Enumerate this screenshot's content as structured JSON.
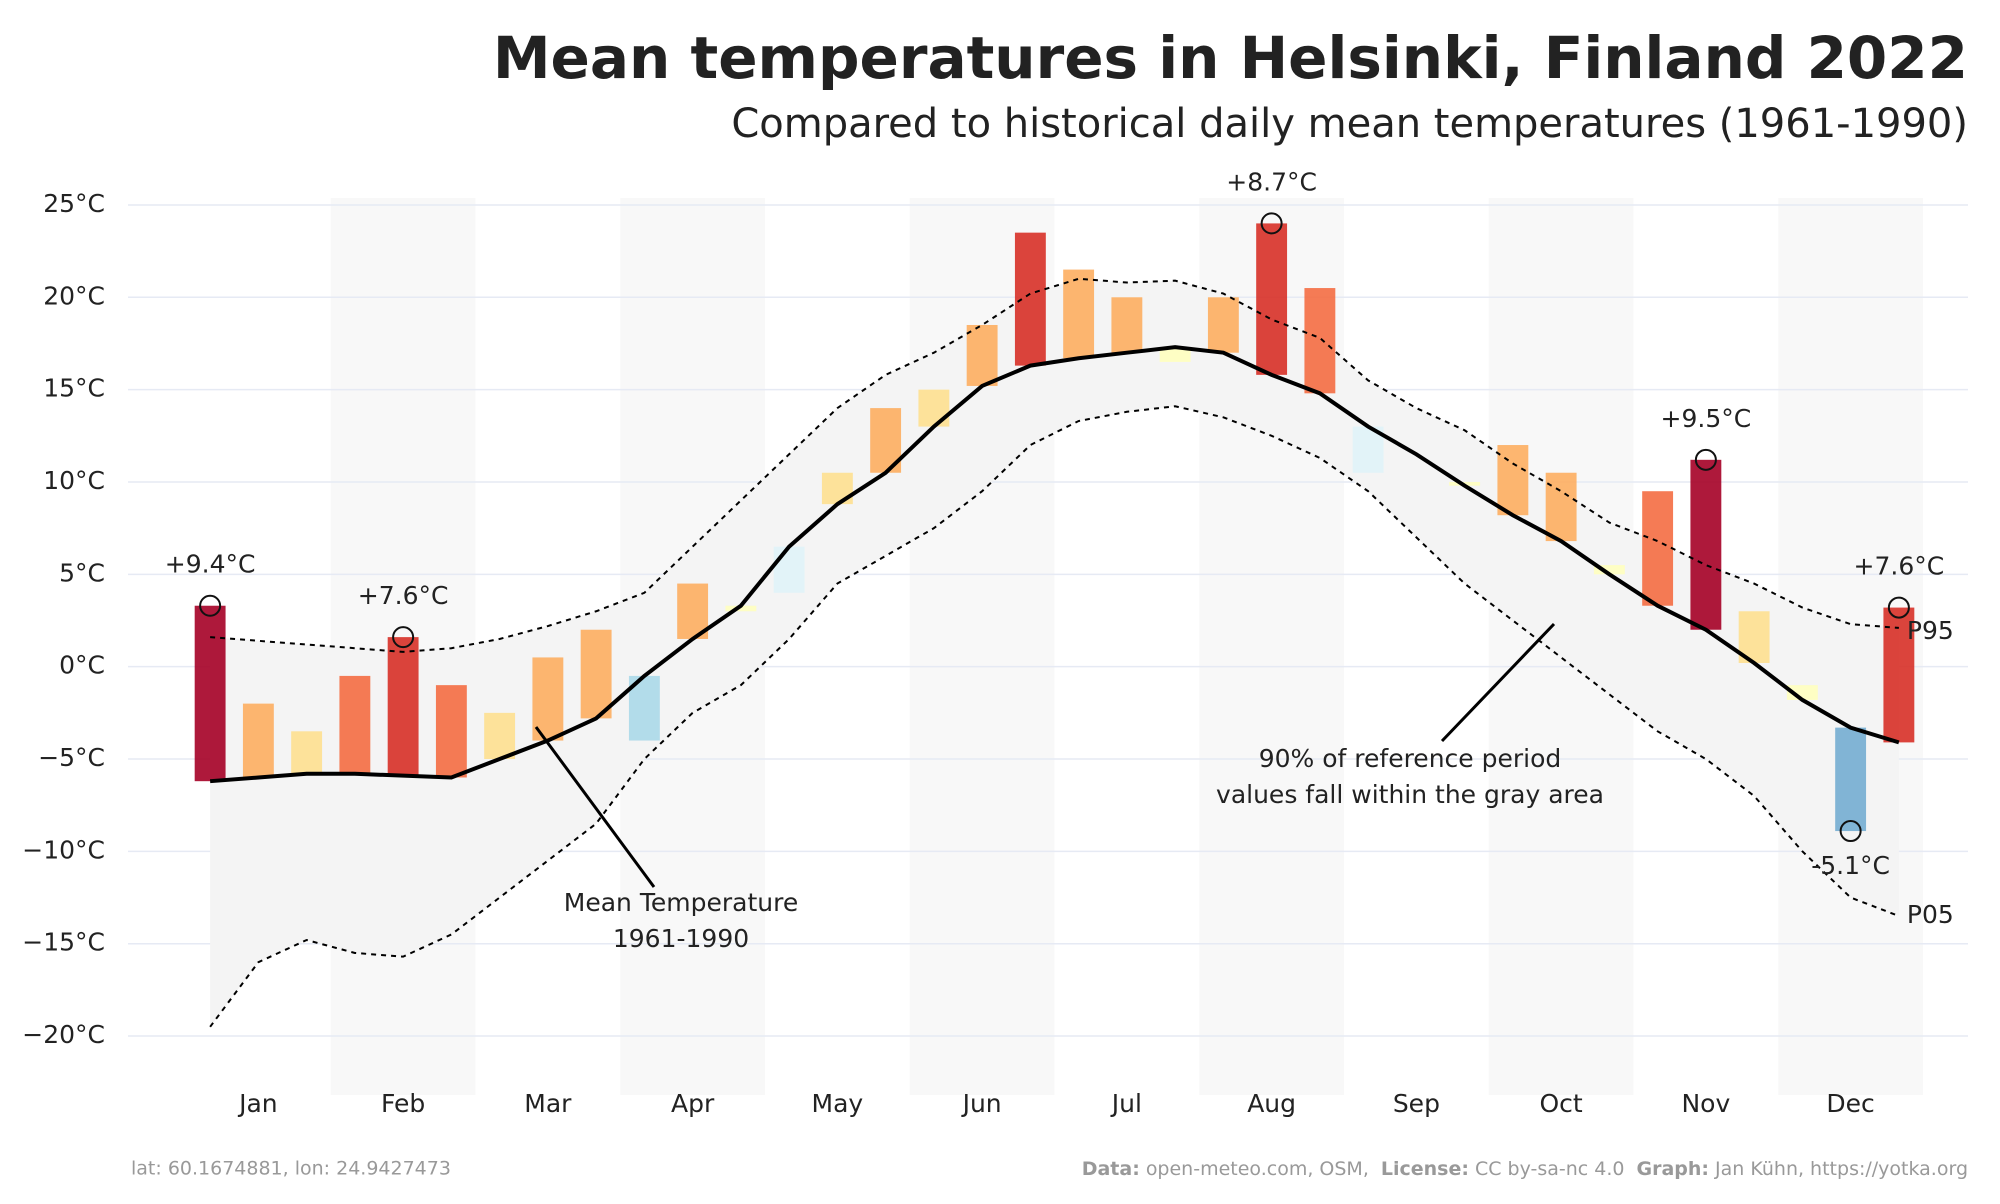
{
  "chart_data": {
    "type": "climate-band",
    "title": "Mean temperatures in Helsinki, Finland 2022",
    "subtitle": "Compared to historical daily mean temperatures (1961-1990)",
    "categories": [
      null,
      "Jan",
      null,
      null,
      "Feb",
      null,
      null,
      "Mar",
      null,
      null,
      "Apr",
      null,
      null,
      "May",
      null,
      null,
      "Jun",
      null,
      null,
      "Jul",
      null,
      null,
      "Aug",
      null,
      null,
      "Sep",
      null,
      null,
      "Oct",
      null,
      null,
      "Nov",
      null,
      null,
      "Dec",
      null
    ],
    "series": [
      {
        "color": "#000000",
        "style": "solid",
        "values": [
          -6.2,
          -6.0,
          -5.8,
          -5.8,
          -5.9,
          -6.0,
          -5.0,
          -4.0,
          -2.8,
          -0.5,
          1.5,
          3.3,
          6.5,
          8.8,
          10.5,
          13.0,
          15.2,
          16.3,
          16.7,
          17.0,
          17.3,
          17.0,
          15.8,
          14.8,
          13.0,
          11.5,
          9.8,
          8.2,
          6.8,
          5.0,
          3.3,
          2.0,
          0.2,
          -1.8,
          -3.3,
          -4.1
        ]
      },
      {
        "name": "P95",
        "color": "#000000",
        "style": "dashed",
        "values": [
          1.6,
          1.4,
          1.2,
          1.0,
          0.8,
          1.0,
          1.5,
          2.2,
          3.0,
          4.0,
          6.5,
          9.0,
          11.5,
          14.0,
          15.8,
          17.0,
          18.5,
          20.2,
          21.0,
          20.8,
          20.9,
          20.2,
          18.8,
          17.8,
          15.5,
          14.0,
          12.8,
          11.0,
          9.5,
          7.8,
          6.8,
          5.5,
          4.5,
          3.2,
          2.3,
          2.1
        ]
      },
      {
        "name": "P05",
        "color": "#000000",
        "style": "dashed",
        "values": [
          -19.5,
          -16.0,
          -14.8,
          -15.5,
          -15.7,
          -14.5,
          -12.5,
          -10.5,
          -8.5,
          -5.0,
          -2.5,
          -1.0,
          1.5,
          4.5,
          6.0,
          7.5,
          9.5,
          12.0,
          13.3,
          13.8,
          14.1,
          13.5,
          12.5,
          11.3,
          9.5,
          7.0,
          4.5,
          2.5,
          0.5,
          -1.5,
          -3.5,
          -5.0,
          -7.0,
          -10.0,
          -12.5,
          -13.5
        ]
      },
      {
        "style": "anomaly",
        "values": [
          3.3,
          -2.0,
          -3.5,
          -0.5,
          1.6,
          -1.0,
          -2.5,
          0.5,
          2.0,
          -4.0,
          4.5,
          3.0,
          4.0,
          10.5,
          14.0,
          15.0,
          18.5,
          23.5,
          21.5,
          20.0,
          16.5,
          20.0,
          24.0,
          20.5,
          10.5,
          11.5,
          10.0,
          12.0,
          10.5,
          5.5,
          9.5,
          11.2,
          3.0,
          -1.0,
          -8.9,
          3.2
        ]
      }
    ],
    "palette": [
      "#313695",
      "#4575b4",
      "#74add1",
      "#abd9e9",
      "#e0f3f8",
      "#ffffbf",
      "#fee090",
      "#fdae61",
      "#f46d43",
      "#d73027",
      "#a50026"
    ],
    "annotations": [
      {
        "label": "+9.4°C",
        "value": 3.3
      },
      {
        "label": "+7.6°C",
        "value": 1.6
      },
      {
        "label": "+8.7°C",
        "value": 24.0
      },
      {
        "label": "+9.5°C",
        "value": 11.2
      },
      {
        "label": "-5.1°C",
        "value": -8.9
      },
      {
        "label": "+7.6°C",
        "value": 3.2
      }
    ],
    "callouts": [
      {
        "lines": [
          "Mean Temperature",
          "1961-1990"
        ]
      },
      {
        "lines": [
          "90% of reference period",
          "values fall within the gray area"
        ]
      }
    ],
    "ylim": [
      -22,
      27
    ],
    "yticks": [
      {
        "value": -20,
        "label": "−20°C"
      },
      {
        "value": -15,
        "label": "−15°C"
      },
      {
        "value": -10,
        "label": "−10°C"
      },
      {
        "value": -5,
        "label": "−5°C"
      },
      {
        "value": 0,
        "label": "0°C"
      },
      {
        "value": 5,
        "label": "5°C"
      },
      {
        "value": 10,
        "label": "10°C"
      },
      {
        "value": 15,
        "label": "15°C"
      },
      {
        "value": 20,
        "label": "20°C"
      },
      {
        "value": 25,
        "label": "25°C"
      }
    ],
    "grid": true,
    "footer": {
      "location": "lat: 60.1674881, lon: 24.9427473",
      "credits": [
        {
          "key": "Data:",
          "text": "open-meteo.com, OSM,"
        },
        {
          "key": "License:",
          "text": "CC by-sa-nc 4.0"
        },
        {
          "key": "Graph:",
          "text": "Jan Kühn, https://yotka.org"
        }
      ]
    }
  }
}
